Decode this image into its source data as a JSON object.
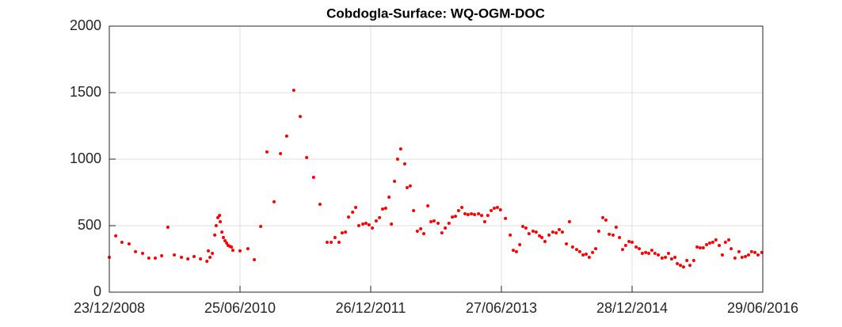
{
  "chart_data": {
    "type": "scatter",
    "title": "Cobdogla-Surface: WQ-OGM-DOC",
    "color": "#ff0000",
    "grid": true,
    "xlim": [
      "2008-12-23",
      "2016-06-29"
    ],
    "xticks": [
      {
        "value": "2008-12-23",
        "label": "23/12/2008"
      },
      {
        "value": "2010-06-25",
        "label": "25/06/2010"
      },
      {
        "value": "2011-12-26",
        "label": "26/12/2011"
      },
      {
        "value": "2013-06-27",
        "label": "27/06/2013"
      },
      {
        "value": "2014-12-28",
        "label": "28/12/2014"
      },
      {
        "value": "2016-06-29",
        "label": "29/06/2016"
      }
    ],
    "ylim": [
      0,
      2000
    ],
    "yticks": [
      0,
      500,
      1000,
      1500,
      2000
    ],
    "x": [
      "2008-12-23",
      "2009-01-19",
      "2009-02-14",
      "2009-03-16",
      "2009-04-12",
      "2009-05-12",
      "2009-06-07",
      "2009-07-04",
      "2009-07-31",
      "2009-08-26",
      "2009-09-22",
      "2009-10-22",
      "2009-11-18",
      "2009-12-14",
      "2010-01-10",
      "2010-02-06",
      "2010-02-12",
      "2010-02-19",
      "2010-03-01",
      "2010-03-11",
      "2010-03-17",
      "2010-03-24",
      "2010-03-31",
      "2010-04-03",
      "2010-04-10",
      "2010-04-16",
      "2010-04-23",
      "2010-04-30",
      "2010-05-06",
      "2010-05-13",
      "2010-05-20",
      "2010-05-26",
      "2010-06-25",
      "2010-07-28",
      "2010-08-24",
      "2010-09-20",
      "2010-10-16",
      "2010-11-15",
      "2010-12-12",
      "2011-01-07",
      "2011-02-06",
      "2011-03-05",
      "2011-04-01",
      "2011-04-30",
      "2011-05-27",
      "2011-06-26",
      "2011-07-13",
      "2011-07-29",
      "2011-08-15",
      "2011-08-28",
      "2011-09-11",
      "2011-09-24",
      "2011-10-11",
      "2011-10-24",
      "2011-11-06",
      "2011-11-23",
      "2011-12-06",
      "2011-12-19",
      "2012-01-02",
      "2012-01-18",
      "2012-02-01",
      "2012-02-14",
      "2012-02-27",
      "2012-03-12",
      "2012-03-22",
      "2012-04-04",
      "2012-04-17",
      "2012-04-30",
      "2012-05-17",
      "2012-05-27",
      "2012-06-09",
      "2012-06-23",
      "2012-07-09",
      "2012-07-23",
      "2012-08-05",
      "2012-08-22",
      "2012-09-04",
      "2012-09-17",
      "2012-10-04",
      "2012-10-20",
      "2012-11-03",
      "2012-11-19",
      "2012-12-03",
      "2012-12-16",
      "2012-12-29",
      "2013-01-12",
      "2013-01-25",
      "2013-02-07",
      "2013-02-21",
      "2013-03-06",
      "2013-03-23",
      "2013-04-05",
      "2013-04-18",
      "2013-05-01",
      "2013-05-15",
      "2013-05-28",
      "2013-06-10",
      "2013-06-23",
      "2013-07-14",
      "2013-08-03",
      "2013-08-16",
      "2013-08-29",
      "2013-09-12",
      "2013-09-25",
      "2013-10-08",
      "2013-10-21",
      "2013-11-07",
      "2013-11-20",
      "2013-12-04",
      "2013-12-14",
      "2013-12-27",
      "2014-01-13",
      "2014-01-29",
      "2014-02-12",
      "2014-02-25",
      "2014-03-10",
      "2014-03-27",
      "2014-04-09",
      "2014-04-22",
      "2014-05-09",
      "2014-05-22",
      "2014-06-05",
      "2014-06-18",
      "2014-07-01",
      "2014-07-15",
      "2014-07-28",
      "2014-08-10",
      "2014-08-27",
      "2014-09-09",
      "2014-09-23",
      "2014-10-09",
      "2014-10-22",
      "2014-11-05",
      "2014-11-18",
      "2014-12-01",
      "2014-12-15",
      "2014-12-28",
      "2015-01-14",
      "2015-01-27",
      "2015-02-09",
      "2015-02-23",
      "2015-03-08",
      "2015-03-21",
      "2015-04-03",
      "2015-04-17",
      "2015-05-03",
      "2015-05-17",
      "2015-05-30",
      "2015-06-12",
      "2015-06-26",
      "2015-07-06",
      "2015-07-19",
      "2015-08-01",
      "2015-08-15",
      "2015-08-28",
      "2015-09-13",
      "2015-09-27",
      "2015-10-10",
      "2015-10-23",
      "2015-11-06",
      "2015-11-19",
      "2015-12-02",
      "2015-12-15",
      "2015-12-29",
      "2016-01-11",
      "2016-01-24",
      "2016-02-07",
      "2016-02-17",
      "2016-03-04",
      "2016-03-21",
      "2016-04-03",
      "2016-04-17",
      "2016-04-30",
      "2016-05-13",
      "2016-05-27",
      "2016-06-09",
      "2016-06-25"
    ],
    "values": [
      262,
      423,
      375,
      363,
      304,
      292,
      256,
      256,
      274,
      488,
      280,
      262,
      250,
      268,
      250,
      232,
      310,
      262,
      292,
      429,
      500,
      560,
      577,
      530,
      452,
      411,
      387,
      369,
      351,
      345,
      339,
      315,
      310,
      327,
      244,
      494,
      1054,
      679,
      1042,
      1173,
      1518,
      1321,
      1012,
      863,
      661,
      375,
      375,
      411,
      375,
      446,
      452,
      565,
      601,
      637,
      500,
      512,
      518,
      506,
      482,
      536,
      560,
      625,
      631,
      714,
      512,
      833,
      1000,
      1077,
      964,
      786,
      798,
      613,
      458,
      476,
      440,
      649,
      530,
      536,
      518,
      446,
      482,
      518,
      565,
      571,
      613,
      637,
      589,
      583,
      589,
      583,
      589,
      577,
      530,
      577,
      613,
      631,
      637,
      619,
      554,
      429,
      315,
      304,
      357,
      494,
      482,
      440,
      458,
      452,
      423,
      411,
      381,
      429,
      452,
      446,
      470,
      452,
      363,
      530,
      339,
      321,
      304,
      280,
      286,
      262,
      298,
      327,
      458,
      560,
      542,
      435,
      429,
      488,
      411,
      321,
      351,
      381,
      375,
      339,
      327,
      292,
      298,
      292,
      315,
      292,
      280,
      256,
      262,
      292,
      250,
      262,
      214,
      202,
      190,
      238,
      202,
      238,
      339,
      333,
      333,
      357,
      369,
      375,
      393,
      351,
      280,
      375,
      393,
      327,
      256,
      304,
      262,
      268,
      280,
      304,
      298,
      280,
      298
    ]
  }
}
